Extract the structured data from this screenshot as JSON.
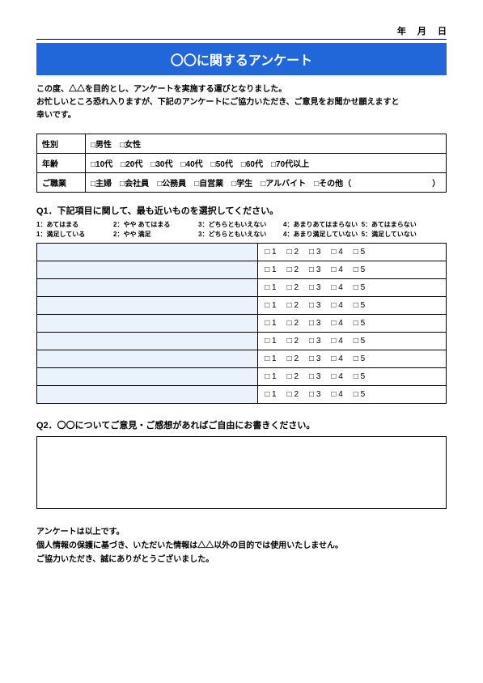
{
  "date_line": "年　 月　 日　　",
  "title": "〇〇に関するアンケート",
  "intro_lines": [
    "この度、△△を目的とし、アンケートを実施する運びとなりました。",
    "お忙しいところ恐れ入りますが、下記のアンケートにご協力いただき、ご意見をお聞かせ願えますと",
    "幸いです。"
  ],
  "demographics": {
    "rows": [
      {
        "label": "性別",
        "options": "□男性　□女性"
      },
      {
        "label": "年齢",
        "options": "□10代　□20代　□30代　□40代　□50代　□60代　□70代以上"
      },
      {
        "label": "ご職業",
        "options": "□主婦　□会社員　□公務員　□自営業　□学生　□アルバイト　□その他（　　　　　　　　　　）"
      }
    ]
  },
  "q1": {
    "title": "Q1．下記項目に関して、最も近いものを選択してください。",
    "legend_row1": [
      "1：あてはまる",
      "2：やや あてはまる",
      "3：どちらともいえない",
      "4：あまりあてはまらない",
      "5：あてはまらない"
    ],
    "legend_row2": [
      "1：満足している",
      "2：やや 満足",
      "3：どちらともいえない",
      "4：あまり満足していない",
      "5：満足していない"
    ],
    "row_count": 9,
    "scale_labels": [
      "□ 1",
      "□ 2",
      "□ 3",
      "□ 4",
      "□ 5"
    ]
  },
  "q2": {
    "title": "Q2．〇〇についてご意見・ご感想があればご自由にお書きください。"
  },
  "outro_lines": [
    "アンケートは以上です。",
    "個人情報の保護に基づき、いただいた情報は△△以外の目的では使用いたしません。",
    "ご協力いただき、誠にありがとうございました。"
  ],
  "colors": {
    "title_bg": "#2167d9",
    "item_bg": "#eaf2fb"
  }
}
